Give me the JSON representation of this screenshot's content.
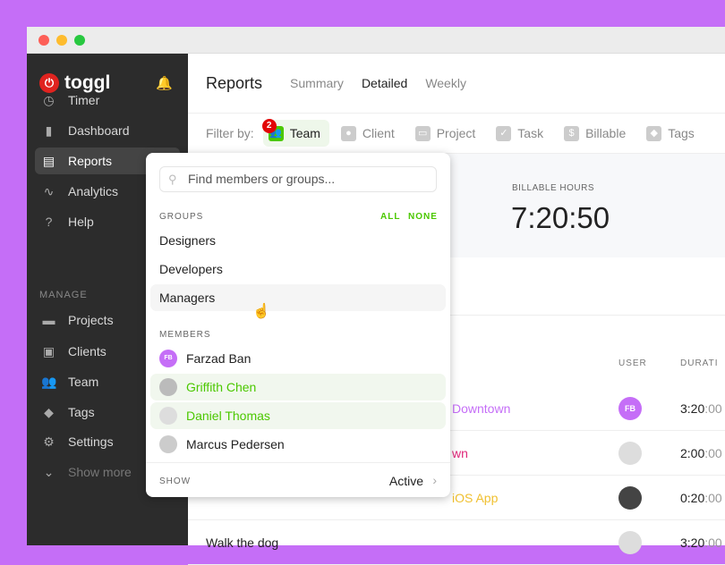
{
  "colors": {
    "background": "#c56ef7",
    "sidebar": "#2c2c2c",
    "accent": "#4bc800",
    "brand": "#e0231f"
  },
  "sidebar": {
    "logo": "toggl",
    "manage_label": "MANAGE",
    "items": [
      {
        "label": "Timer",
        "icon": "clock-icon"
      },
      {
        "label": "Dashboard",
        "icon": "bar-chart-icon"
      },
      {
        "label": "Reports",
        "icon": "document-icon",
        "active": true
      },
      {
        "label": "Analytics",
        "icon": "pulse-icon"
      },
      {
        "label": "Help",
        "icon": "question-icon"
      }
    ],
    "manage": [
      {
        "label": "Projects",
        "icon": "folder-icon"
      },
      {
        "label": "Clients",
        "icon": "contact-icon"
      },
      {
        "label": "Team",
        "icon": "people-icon"
      },
      {
        "label": "Tags",
        "icon": "tag-icon"
      },
      {
        "label": "Settings",
        "icon": "gear-icon"
      },
      {
        "label": "Show more",
        "icon": "chevron-down-icon"
      }
    ]
  },
  "header": {
    "title": "Reports",
    "tabs": [
      "Summary",
      "Detailed",
      "Weekly"
    ],
    "active_tab": "Detailed"
  },
  "filter": {
    "label": "Filter by:",
    "team_badge": "2",
    "items": [
      "Team",
      "Client",
      "Project",
      "Task",
      "Billable",
      "Tags"
    ]
  },
  "stats": {
    "label": "BILLABLE HOURS",
    "value": "7:20:50"
  },
  "table": {
    "headers": [
      "USER",
      "DURATI"
    ],
    "rows": [
      {
        "desc": "",
        "project": "Downtown",
        "project_color": "#c56ef7",
        "user": "FB",
        "dur": "3:20",
        "sec": ":00"
      },
      {
        "desc": "",
        "project": "wn",
        "project_color": "#e0287a",
        "user": "",
        "dur": "2:00",
        "sec": ":00"
      },
      {
        "desc": "",
        "project": "iOS App",
        "project_color": "#f0c030",
        "user": "",
        "dur": "0:20",
        "sec": ":00"
      },
      {
        "desc": "Walk the dog",
        "project": "",
        "project_color": "#222",
        "user": "",
        "dur": "3:20",
        "sec": ":00"
      }
    ]
  },
  "popover": {
    "placeholder": "Find members or groups...",
    "groups_label": "GROUPS",
    "all": "ALL",
    "none": "NONE",
    "groups": [
      "Designers",
      "Developers",
      "Managers"
    ],
    "members_label": "MEMBERS",
    "members": [
      {
        "name": "Farzad Ban",
        "initials": "FB",
        "selected": false
      },
      {
        "name": "Griffith Chen",
        "selected": true
      },
      {
        "name": "Daniel Thomas",
        "selected": true
      },
      {
        "name": "Marcus Pedersen",
        "selected": false
      }
    ],
    "show_label": "SHOW",
    "show_value": "Active"
  }
}
